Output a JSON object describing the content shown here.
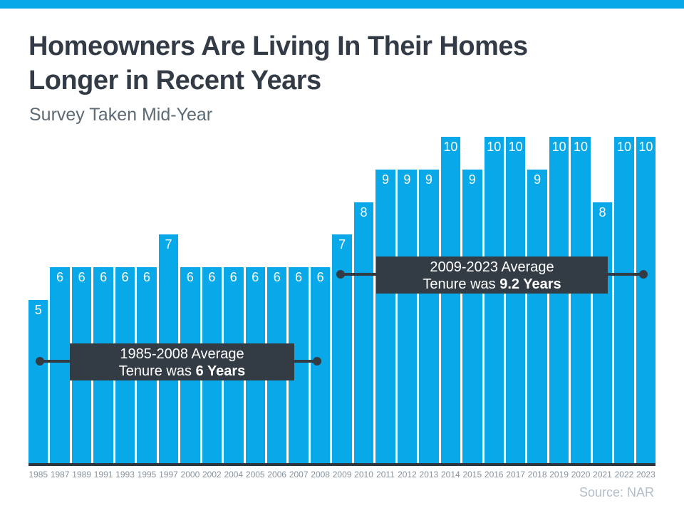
{
  "header": {
    "title_line1": "Homeowners Are Living In Their Homes",
    "title_line2": "Longer in Recent Years",
    "subtitle": "Survey Taken Mid-Year"
  },
  "chart_data": {
    "type": "bar",
    "title": "Homeowners Are Living In Their Homes Longer in Recent Years",
    "subtitle": "Survey Taken Mid-Year",
    "categories": [
      "1985",
      "1987",
      "1989",
      "1991",
      "1993",
      "1995",
      "1997",
      "2000",
      "2002",
      "2004",
      "2005",
      "2006",
      "2007",
      "2008",
      "2009",
      "2010",
      "2011",
      "2012",
      "2013",
      "2014",
      "2015",
      "2016",
      "2017",
      "2018",
      "2019",
      "2020",
      "2021",
      "2022",
      "2023"
    ],
    "values": [
      5,
      6,
      6,
      6,
      6,
      6,
      7,
      6,
      6,
      6,
      6,
      6,
      6,
      6,
      7,
      8,
      9,
      9,
      9,
      10,
      9,
      10,
      10,
      9,
      10,
      10,
      8,
      10,
      10
    ],
    "ylabel": "",
    "xlabel": "",
    "ylim": [
      0,
      10
    ],
    "grid": false,
    "bar_color": "#09a8e8",
    "bar_label_color": "#ffffff",
    "annotations": [
      {
        "line1": "1985-2008 Average",
        "line2_prefix": "Tenure was ",
        "line2_bold": "6 Years",
        "span_start": "1985",
        "span_end": "2008"
      },
      {
        "line1": "2009-2023 Average",
        "line2_prefix": "Tenure was ",
        "line2_bold": "9.2 Years",
        "span_start": "2009",
        "span_end": "2023"
      }
    ]
  },
  "colors": {
    "accent_blue": "#09a8e8",
    "dark_slate": "#333b44",
    "title_text": "#333c46",
    "subtitle_text": "#5c6a75",
    "axis_label_text": "#87939e",
    "source_text": "#b3bec7"
  },
  "footer": {
    "source": "Source: NAR"
  }
}
